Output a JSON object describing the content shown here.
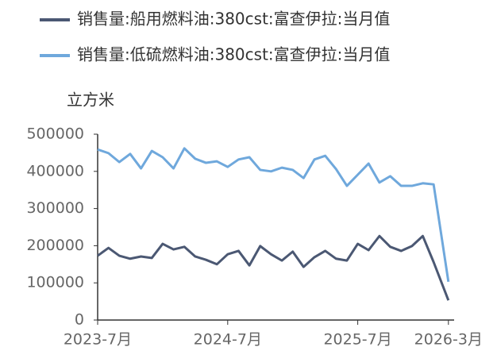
{
  "chart_data": {
    "type": "line",
    "y_label": "立方米",
    "categories": [
      "2023-7月",
      null,
      null,
      null,
      null,
      null,
      null,
      null,
      null,
      null,
      null,
      null,
      "2024-7月",
      null,
      null,
      null,
      null,
      null,
      null,
      null,
      null,
      null,
      null,
      null,
      "2025-7月",
      null,
      null,
      null,
      null,
      null,
      null,
      null,
      "2026-3月"
    ],
    "series": [
      {
        "name": "销售量:船用燃料油:380cst:富查伊拉:当月值",
        "color": "#4b5873",
        "values": [
          173000,
          194000,
          173000,
          165000,
          171000,
          167000,
          205000,
          190000,
          197000,
          171000,
          162000,
          150000,
          177000,
          186000,
          147000,
          199000,
          177000,
          160000,
          184000,
          143000,
          169000,
          186000,
          165000,
          160000,
          205000,
          188000,
          226000,
          197000,
          186000,
          199000,
          226000,
          156000,
          53000
        ]
      },
      {
        "name": "销售量:低硫燃料油:380cst:富查伊拉:当月值",
        "color": "#6fa8dc",
        "values": [
          459000,
          449000,
          425000,
          447000,
          408000,
          455000,
          438000,
          408000,
          462000,
          434000,
          423000,
          427000,
          412000,
          432000,
          438000,
          404000,
          400000,
          410000,
          404000,
          382000,
          432000,
          442000,
          406000,
          361000,
          391000,
          421000,
          370000,
          387000,
          361000,
          361000,
          368000,
          365000,
          103000
        ]
      }
    ],
    "ylim": [
      0,
      500000
    ],
    "yticks": [
      0,
      100000,
      200000,
      300000,
      400000,
      500000
    ]
  }
}
